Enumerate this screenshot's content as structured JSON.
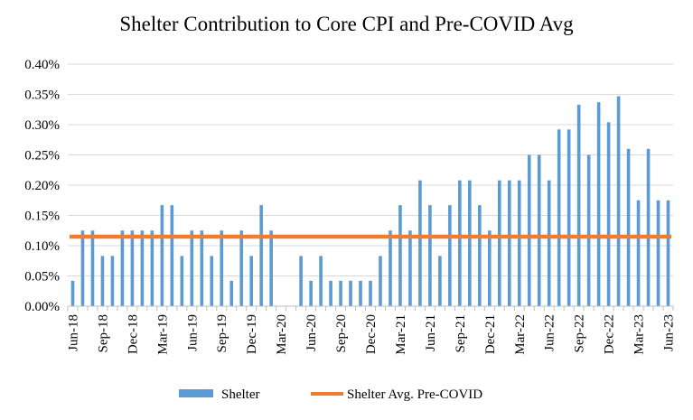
{
  "chart_data": {
    "type": "bar",
    "title": "Shelter Contribution to Core CPI and Pre-COVID Avg",
    "xlabel": "",
    "ylabel": "",
    "ylim": [
      0,
      0.004
    ],
    "y_ticks": [
      "0.00%",
      "0.05%",
      "0.10%",
      "0.15%",
      "0.20%",
      "0.25%",
      "0.30%",
      "0.35%",
      "0.40%"
    ],
    "grid": true,
    "categories": [
      "Jun-18",
      "Jul-18",
      "Aug-18",
      "Sep-18",
      "Oct-18",
      "Nov-18",
      "Dec-18",
      "Jan-19",
      "Feb-19",
      "Mar-19",
      "Apr-19",
      "May-19",
      "Jun-19",
      "Jul-19",
      "Aug-19",
      "Sep-19",
      "Oct-19",
      "Nov-19",
      "Dec-19",
      "Jan-20",
      "Feb-20",
      "Mar-20",
      "Apr-20",
      "May-20",
      "Jun-20",
      "Jul-20",
      "Aug-20",
      "Sep-20",
      "Oct-20",
      "Nov-20",
      "Dec-20",
      "Jan-21",
      "Feb-21",
      "Mar-21",
      "Apr-21",
      "May-21",
      "Jun-21",
      "Jul-21",
      "Aug-21",
      "Sep-21",
      "Oct-21",
      "Nov-21",
      "Dec-21",
      "Jan-22",
      "Feb-22",
      "Mar-22",
      "Apr-22",
      "May-22",
      "Jun-22",
      "Jul-22",
      "Aug-22",
      "Sep-22",
      "Oct-22",
      "Nov-22",
      "Dec-22",
      "Jan-23",
      "Feb-23",
      "Mar-23",
      "Apr-23",
      "May-23",
      "Jun-23"
    ],
    "x_tick_labels": [
      "Jun-18",
      "Sep-18",
      "Dec-18",
      "Mar-19",
      "Jun-19",
      "Sep-19",
      "Dec-19",
      "Mar-20",
      "Jun-20",
      "Sep-20",
      "Dec-20",
      "Mar-21",
      "Jun-21",
      "Sep-21",
      "Dec-21",
      "Mar-22",
      "Jun-22",
      "Sep-22",
      "Dec-22",
      "Mar-23",
      "Jun-23"
    ],
    "series": [
      {
        "name": "Shelter",
        "color": "#5B9BD5",
        "values": [
          0.00042,
          0.00125,
          0.00125,
          0.00083,
          0.00083,
          0.00125,
          0.00125,
          0.00125,
          0.00125,
          0.00167,
          0.00167,
          0.00083,
          0.00125,
          0.00125,
          0.00083,
          0.00125,
          0.00042,
          0.00125,
          0.00083,
          0.00167,
          0.00125,
          0.0,
          0.0,
          0.00083,
          0.00042,
          0.00083,
          0.00042,
          0.00042,
          0.00042,
          0.00042,
          0.00042,
          0.00083,
          0.00125,
          0.00167,
          0.00125,
          0.00208,
          0.00167,
          0.00083,
          0.00167,
          0.00208,
          0.00208,
          0.00167,
          0.00125,
          0.00208,
          0.00208,
          0.00208,
          0.0025,
          0.0025,
          0.00208,
          0.00292,
          0.00292,
          0.00333,
          0.0025,
          0.00337,
          0.00304,
          0.00347,
          0.0026,
          0.00175,
          0.0026,
          0.00175,
          0.00175
        ]
      },
      {
        "name": "Shelter Avg. Pre-COVID",
        "color": "#ED7D31",
        "constant": 0.00115
      }
    ],
    "legend_position": "bottom"
  }
}
